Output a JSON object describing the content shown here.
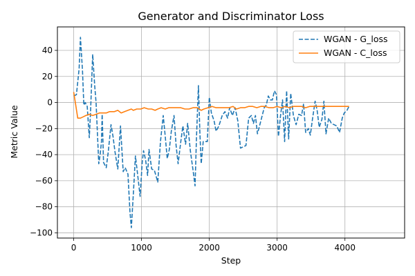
{
  "chart_data": {
    "type": "line",
    "title": "Generator and Discriminator Loss",
    "xlabel": "Step",
    "ylabel": "Metric Value",
    "xlim": [
      -240,
      4880
    ],
    "ylim": [
      -104,
      58
    ],
    "xticks": [
      0,
      1000,
      2000,
      3000,
      4000
    ],
    "yticks": [
      -100,
      -80,
      -60,
      -40,
      -20,
      0,
      20,
      40
    ],
    "grid": true,
    "legend_position": "top-right",
    "series": [
      {
        "name": "WGAN - G_loss",
        "color": "#1f77b4",
        "dash": "dashed",
        "points": [
          [
            0,
            5
          ],
          [
            40,
            6
          ],
          [
            80,
            26
          ],
          [
            100,
            50
          ],
          [
            130,
            24
          ],
          [
            150,
            -2
          ],
          [
            170,
            0
          ],
          [
            200,
            -3
          ],
          [
            230,
            -27
          ],
          [
            250,
            -6
          ],
          [
            280,
            37
          ],
          [
            310,
            13
          ],
          [
            330,
            0
          ],
          [
            370,
            -47
          ],
          [
            390,
            -40
          ],
          [
            410,
            -30
          ],
          [
            420,
            -9
          ],
          [
            440,
            -46
          ],
          [
            460,
            -48
          ],
          [
            480,
            -50
          ],
          [
            510,
            -38
          ],
          [
            550,
            -17
          ],
          [
            580,
            -26
          ],
          [
            610,
            -38
          ],
          [
            650,
            -51
          ],
          [
            690,
            -18
          ],
          [
            730,
            -53
          ],
          [
            760,
            -50
          ],
          [
            800,
            -55
          ],
          [
            830,
            -84
          ],
          [
            850,
            -96
          ],
          [
            880,
            -70
          ],
          [
            910,
            -41
          ],
          [
            940,
            -54
          ],
          [
            980,
            -72
          ],
          [
            1010,
            -46
          ],
          [
            1030,
            -37
          ],
          [
            1060,
            -44
          ],
          [
            1090,
            -56
          ],
          [
            1110,
            -36
          ],
          [
            1150,
            -51
          ],
          [
            1190,
            -52
          ],
          [
            1240,
            -61
          ],
          [
            1280,
            -30
          ],
          [
            1320,
            -10
          ],
          [
            1350,
            -26
          ],
          [
            1380,
            -43
          ],
          [
            1410,
            -36
          ],
          [
            1440,
            -22
          ],
          [
            1480,
            -10
          ],
          [
            1510,
            -33
          ],
          [
            1540,
            -47
          ],
          [
            1580,
            -30
          ],
          [
            1610,
            -18
          ],
          [
            1650,
            -32
          ],
          [
            1680,
            -16
          ],
          [
            1720,
            -37
          ],
          [
            1760,
            -52
          ],
          [
            1790,
            -64
          ],
          [
            1810,
            -28
          ],
          [
            1840,
            13
          ],
          [
            1860,
            -22
          ],
          [
            1880,
            -47
          ],
          [
            1910,
            -30
          ],
          [
            1940,
            -30
          ],
          [
            1970,
            -30
          ],
          [
            2000,
            4
          ],
          [
            2030,
            -8
          ],
          [
            2070,
            -14
          ],
          [
            2100,
            -22
          ],
          [
            2140,
            -18
          ],
          [
            2190,
            -10
          ],
          [
            2230,
            -7
          ],
          [
            2270,
            -12
          ],
          [
            2300,
            -4
          ],
          [
            2340,
            -10
          ],
          [
            2380,
            -4
          ],
          [
            2420,
            -14
          ],
          [
            2460,
            -35
          ],
          [
            2500,
            -34
          ],
          [
            2540,
            -33
          ],
          [
            2580,
            -12
          ],
          [
            2620,
            -10
          ],
          [
            2650,
            -16
          ],
          [
            2680,
            -10
          ],
          [
            2710,
            -24
          ],
          [
            2750,
            -16
          ],
          [
            2780,
            -10
          ],
          [
            2810,
            -4
          ],
          [
            2840,
            -2
          ],
          [
            2870,
            5
          ],
          [
            2900,
            2
          ],
          [
            2930,
            2
          ],
          [
            2960,
            9
          ],
          [
            2990,
            6
          ],
          [
            3020,
            -26
          ],
          [
            3050,
            -10
          ],
          [
            3080,
            2
          ],
          [
            3110,
            -30
          ],
          [
            3140,
            9
          ],
          [
            3170,
            -28
          ],
          [
            3200,
            7
          ],
          [
            3240,
            -10
          ],
          [
            3280,
            -17
          ],
          [
            3320,
            -9
          ],
          [
            3360,
            -10
          ],
          [
            3390,
            -1
          ],
          [
            3420,
            -23
          ],
          [
            3460,
            -20
          ],
          [
            3490,
            -25
          ],
          [
            3520,
            -13
          ],
          [
            3560,
            1
          ],
          [
            3590,
            -6
          ],
          [
            3620,
            -19
          ],
          [
            3660,
            -13
          ],
          [
            3690,
            1
          ],
          [
            3720,
            -24
          ],
          [
            3760,
            -12
          ],
          [
            3800,
            -16
          ],
          [
            3840,
            -17
          ],
          [
            3880,
            -18
          ],
          [
            3920,
            -23
          ],
          [
            3960,
            -12
          ],
          [
            3990,
            -8
          ],
          [
            4030,
            -6
          ],
          [
            4060,
            -3
          ]
        ]
      },
      {
        "name": "WGAN - C_loss",
        "color": "#ff7f0e",
        "dash": "solid",
        "points": [
          [
            0,
            8
          ],
          [
            30,
            -2
          ],
          [
            60,
            -12
          ],
          [
            100,
            -12
          ],
          [
            140,
            -11
          ],
          [
            180,
            -10
          ],
          [
            230,
            -9
          ],
          [
            280,
            -10
          ],
          [
            330,
            -9
          ],
          [
            380,
            -8
          ],
          [
            430,
            -8
          ],
          [
            480,
            -8
          ],
          [
            530,
            -7
          ],
          [
            600,
            -7
          ],
          [
            650,
            -6
          ],
          [
            700,
            -8
          ],
          [
            750,
            -7
          ],
          [
            800,
            -6
          ],
          [
            850,
            -5
          ],
          [
            880,
            -6
          ],
          [
            930,
            -5
          ],
          [
            990,
            -5
          ],
          [
            1040,
            -4
          ],
          [
            1100,
            -5
          ],
          [
            1150,
            -5
          ],
          [
            1200,
            -6
          ],
          [
            1240,
            -5
          ],
          [
            1290,
            -4
          ],
          [
            1350,
            -5
          ],
          [
            1400,
            -4
          ],
          [
            1460,
            -4
          ],
          [
            1520,
            -4
          ],
          [
            1580,
            -4
          ],
          [
            1640,
            -5
          ],
          [
            1700,
            -5
          ],
          [
            1760,
            -4
          ],
          [
            1820,
            -4
          ],
          [
            1880,
            -6
          ],
          [
            1920,
            -5
          ],
          [
            1980,
            -4
          ],
          [
            2040,
            -3
          ],
          [
            2100,
            -4
          ],
          [
            2160,
            -4
          ],
          [
            2230,
            -4
          ],
          [
            2290,
            -4
          ],
          [
            2350,
            -3
          ],
          [
            2400,
            -5
          ],
          [
            2460,
            -4
          ],
          [
            2520,
            -4
          ],
          [
            2580,
            -3
          ],
          [
            2640,
            -3
          ],
          [
            2700,
            -4
          ],
          [
            2760,
            -3
          ],
          [
            2820,
            -3
          ],
          [
            2880,
            -4
          ],
          [
            2940,
            -4
          ],
          [
            3000,
            -3
          ],
          [
            3060,
            -4
          ],
          [
            3120,
            -3
          ],
          [
            3180,
            -4
          ],
          [
            3240,
            -3
          ],
          [
            3300,
            -3
          ],
          [
            3360,
            -3
          ],
          [
            3420,
            -4
          ],
          [
            3480,
            -3
          ],
          [
            3540,
            -3
          ],
          [
            3600,
            -3
          ],
          [
            3660,
            -3
          ],
          [
            3720,
            -3
          ],
          [
            3780,
            -3
          ],
          [
            3840,
            -3
          ],
          [
            3900,
            -3
          ],
          [
            3960,
            -3
          ],
          [
            4020,
            -3
          ],
          [
            4060,
            -3
          ]
        ]
      }
    ]
  }
}
